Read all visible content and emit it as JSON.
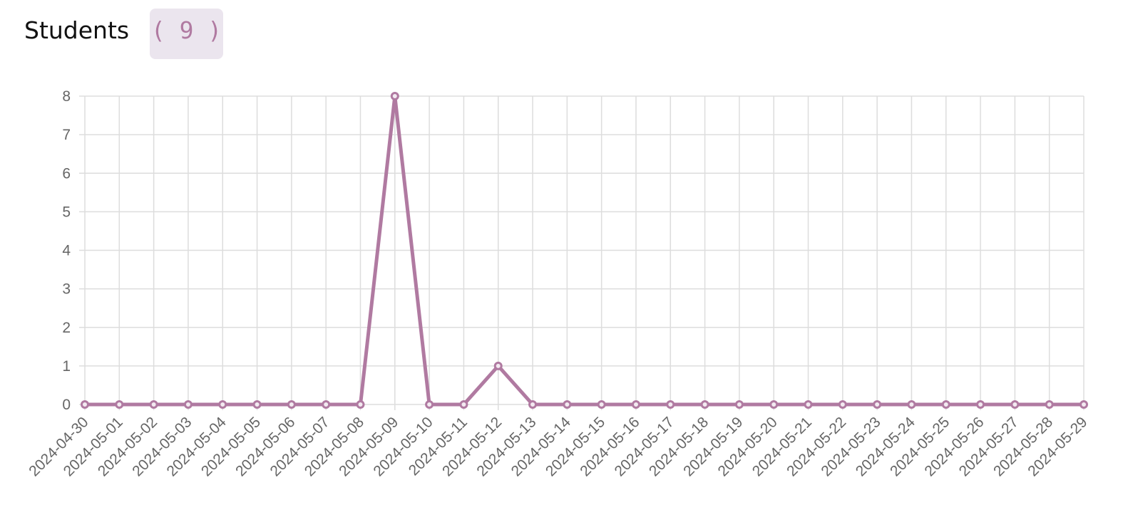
{
  "header": {
    "title": "Students",
    "count": "( 9 )"
  },
  "chart_data": {
    "type": "line",
    "categories": [
      "2024-04-30",
      "2024-05-01",
      "2024-05-02",
      "2024-05-03",
      "2024-05-04",
      "2024-05-05",
      "2024-05-06",
      "2024-05-07",
      "2024-05-08",
      "2024-05-09",
      "2024-05-10",
      "2024-05-11",
      "2024-05-12",
      "2024-05-13",
      "2024-05-14",
      "2024-05-15",
      "2024-05-16",
      "2024-05-17",
      "2024-05-18",
      "2024-05-19",
      "2024-05-20",
      "2024-05-21",
      "2024-05-22",
      "2024-05-23",
      "2024-05-24",
      "2024-05-25",
      "2024-05-26",
      "2024-05-27",
      "2024-05-28",
      "2024-05-29"
    ],
    "values": [
      0,
      0,
      0,
      0,
      0,
      0,
      0,
      0,
      0,
      8,
      0,
      0,
      1,
      0,
      0,
      0,
      0,
      0,
      0,
      0,
      0,
      0,
      0,
      0,
      0,
      0,
      0,
      0,
      0,
      0
    ],
    "color": "#b07aa1",
    "ylim": [
      0,
      8
    ],
    "yticks": [
      0,
      1,
      2,
      3,
      4,
      5,
      6,
      7,
      8
    ],
    "grid": true
  }
}
